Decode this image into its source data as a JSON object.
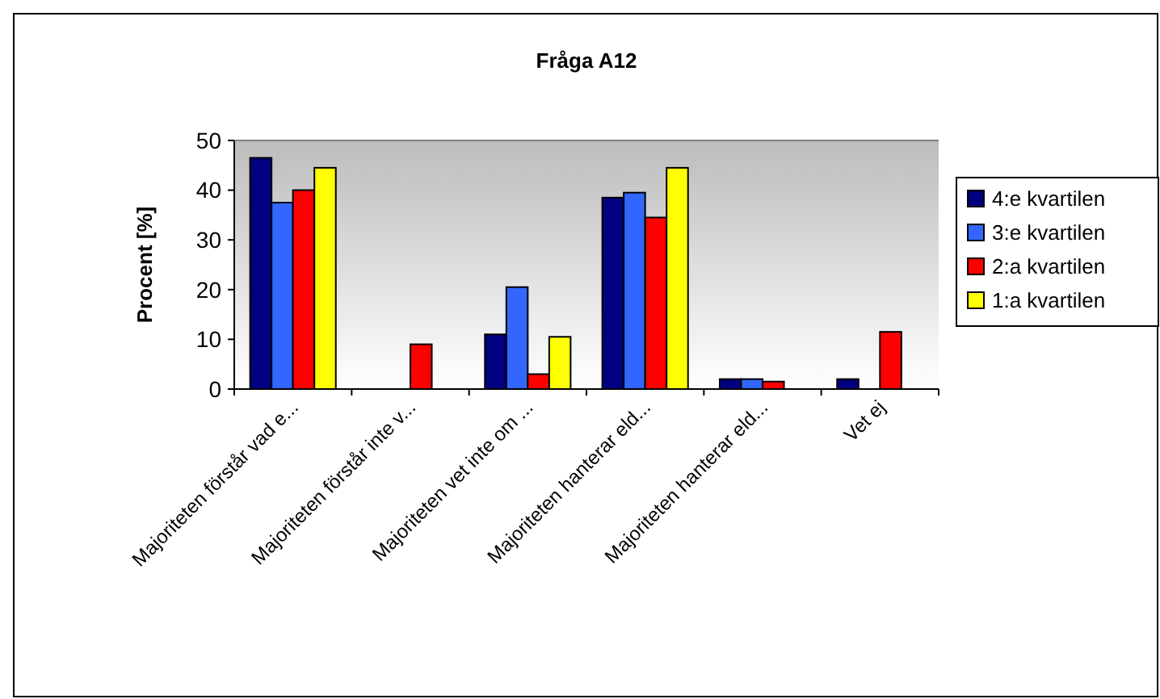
{
  "chart_data": {
    "type": "bar",
    "title": "Fråga A12",
    "ylabel": "Procent [%]",
    "categories": [
      "Majoriteten förstår vad e...",
      "Majoriteten förstår inte v...",
      "Majoriteten vet inte om ...",
      "Majoriteten hanterar eld...",
      "Majoriteten hanterar eld...",
      "Vet ej"
    ],
    "series": [
      {
        "name": "4:e kvartilen",
        "color": "#000080",
        "values": [
          46.5,
          null,
          11,
          38.5,
          2,
          2
        ]
      },
      {
        "name": "3:e kvartilen",
        "color": "#3366ff",
        "values": [
          37.5,
          null,
          20.5,
          39.5,
          2,
          null
        ]
      },
      {
        "name": "2:a kvartilen",
        "color": "#ff0000",
        "values": [
          40,
          9,
          3,
          34.5,
          1.5,
          11.5
        ]
      },
      {
        "name": "1:a kvartilen",
        "color": "#ffff00",
        "values": [
          44.5,
          null,
          10.5,
          44.5,
          null,
          null
        ]
      }
    ],
    "ylim": [
      0,
      50
    ],
    "yticks": [
      0,
      10,
      20,
      30,
      40,
      50
    ],
    "legend": "right"
  }
}
